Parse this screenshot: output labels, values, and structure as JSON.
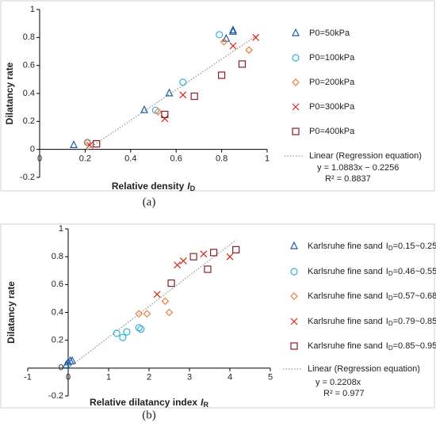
{
  "chart_data": [
    {
      "type": "scatter",
      "xlabel": {
        "text": "Relative density",
        "symbol": "I",
        "subscript": "D"
      },
      "ylabel": "Dilatancy rate",
      "caption": "(a)",
      "xlim": [
        0,
        1
      ],
      "xticks": [
        0,
        0.2,
        0.4,
        0.6,
        0.8,
        1
      ],
      "ylim": [
        -0.2,
        1
      ],
      "yticks": [
        -0.2,
        0,
        0.2,
        0.4,
        0.6,
        0.8,
        1
      ],
      "series": [
        {
          "name": "P0=50kPa",
          "marker": "triangle",
          "color": "#1f5f9f",
          "x": [
            0.15,
            0.46,
            0.57,
            0.82,
            0.85,
            0.85
          ],
          "values": [
            0.03,
            0.28,
            0.4,
            0.79,
            0.85,
            0.84
          ]
        },
        {
          "name": "P0=100kPa",
          "marker": "circle",
          "color": "#33b3d9",
          "x": [
            0.21,
            0.51,
            0.63,
            0.79
          ],
          "values": [
            0.05,
            0.28,
            0.48,
            0.82
          ]
        },
        {
          "name": "P0=200kPa",
          "marker": "diamond",
          "color": "#f07c3e",
          "x": [
            0.21,
            0.52,
            0.81,
            0.92
          ],
          "values": [
            0.05,
            0.27,
            0.77,
            0.71
          ]
        },
        {
          "name": "P0=300kPa",
          "marker": "x",
          "color": "#d9261c",
          "x": [
            0.22,
            0.55,
            0.63,
            0.85,
            0.95
          ],
          "values": [
            0.03,
            0.22,
            0.39,
            0.74,
            0.8
          ]
        },
        {
          "name": "P0=400kPa",
          "marker": "square",
          "color": "#8b1c2a",
          "x": [
            0.25,
            0.55,
            0.68,
            0.8,
            0.89
          ],
          "values": [
            0.04,
            0.25,
            0.38,
            0.53,
            0.61
          ]
        }
      ],
      "trendline": {
        "name": "Linear (Regression equation)",
        "equation": "y = 1.0883x − 0.2256",
        "r2": "R² = 0.8837",
        "color": "#999999",
        "x": [
          0.21,
          0.96
        ],
        "values": [
          0,
          0.82
        ]
      }
    },
    {
      "type": "scatter",
      "xlabel": {
        "text": "Relative dilatancy index",
        "symbol": "I",
        "subscript": "R"
      },
      "ylabel": "Dilatancy rate",
      "caption": "(b)",
      "xlim": [
        -1,
        5
      ],
      "xticks": [
        -1,
        0,
        1,
        2,
        3,
        4,
        5
      ],
      "ylim": [
        -0.2,
        1
      ],
      "yticks": [
        -0.2,
        0,
        0.2,
        0.4,
        0.6,
        0.8,
        1
      ],
      "series": [
        {
          "name": "Karlsruhe fine sand",
          "symbol": "I",
          "subscript": "D",
          "range": "=0.15~0.25",
          "marker": "triangle",
          "color": "#1f5f9f",
          "x": [
            -0.05,
            0,
            0.05,
            0.1
          ],
          "values": [
            0.02,
            0.04,
            0.05,
            0.05
          ]
        },
        {
          "name": "Karlsruhe fine sand",
          "symbol": "I",
          "subscript": "D",
          "range": "=0.46~0.55",
          "marker": "circle",
          "color": "#33b3d9",
          "x": [
            1.2,
            1.35,
            1.45,
            1.75,
            1.8
          ],
          "values": [
            0.25,
            0.22,
            0.26,
            0.29,
            0.28
          ]
        },
        {
          "name": "Karlsruhe fine sand",
          "symbol": "I",
          "subscript": "D",
          "range": "=0.57~0.68",
          "marker": "diamond",
          "color": "#f07c3e",
          "x": [
            1.75,
            1.95,
            2.4,
            2.5
          ],
          "values": [
            0.39,
            0.39,
            0.48,
            0.4
          ]
        },
        {
          "name": "Karlsruhe fine sand",
          "symbol": "I",
          "subscript": "D",
          "range": "=0.79~0.85",
          "marker": "x",
          "color": "#d9261c",
          "x": [
            2.2,
            2.7,
            2.85,
            3.35,
            4.0
          ],
          "values": [
            0.53,
            0.74,
            0.77,
            0.82,
            0.8
          ]
        },
        {
          "name": "Karlsruhe fine sand",
          "symbol": "I",
          "subscript": "D",
          "range": "=0.85~0.95",
          "marker": "square",
          "color": "#8b1c2a",
          "x": [
            2.55,
            3.1,
            3.45,
            3.6,
            4.15
          ],
          "values": [
            0.61,
            0.8,
            0.71,
            0.83,
            0.85
          ]
        }
      ],
      "trendline": {
        "name": "Linear (Regression equation)",
        "equation": "y = 0.2208x",
        "r2": "R² = 0.977",
        "color": "#999999",
        "x": [
          0,
          4.15
        ],
        "values": [
          0,
          0.92
        ]
      }
    }
  ]
}
